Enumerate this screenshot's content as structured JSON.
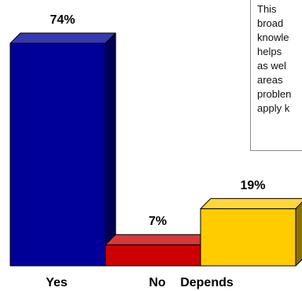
{
  "chart_data": {
    "type": "bar",
    "style": "3d",
    "categories": [
      "Yes",
      "No",
      "Depends"
    ],
    "values": [
      74,
      7,
      19
    ],
    "value_labels": [
      "74%",
      "7%",
      "19%"
    ],
    "colors": [
      "#000099",
      "#cc0000",
      "#ffcc00"
    ],
    "ylim": [
      0,
      80
    ],
    "grid": false,
    "legend": "none",
    "title": "",
    "xlabel": "",
    "ylabel": ""
  },
  "note": {
    "lines": [
      "This",
      "broad",
      "knowle",
      "helps",
      "as  wel",
      "areas",
      "problen",
      "apply k"
    ]
  }
}
